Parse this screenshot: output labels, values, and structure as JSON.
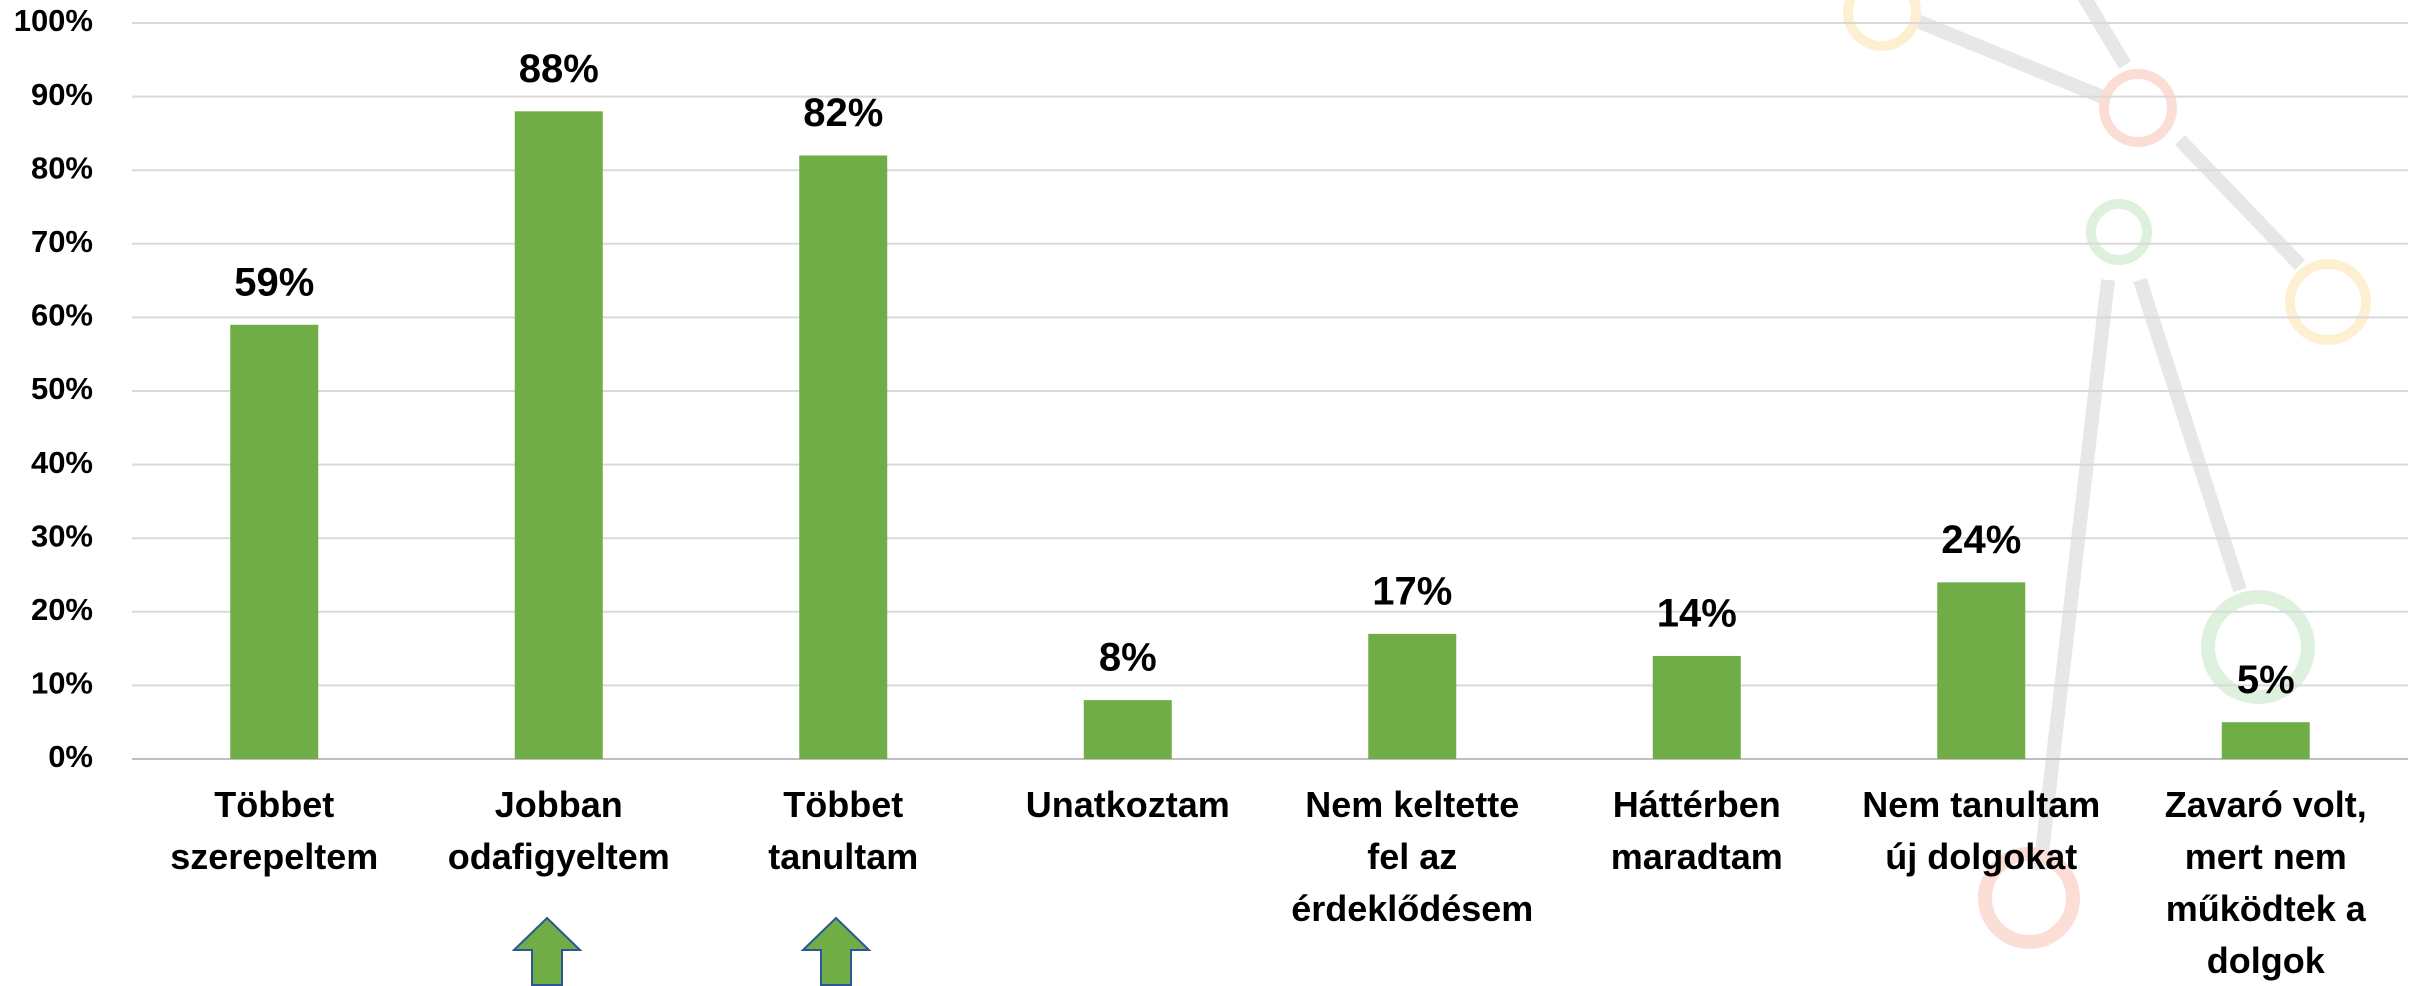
{
  "chart_data": {
    "type": "bar",
    "categories": [
      "Többet\nszerepeltem",
      "Jobban\nodafigyeltem",
      "Többet\ntanultam",
      "Unatkoztam",
      "Nem keltette\nfel az\nérdeklődésem",
      "Háttérben\nmaradtam",
      "Nem tanultam\núj dolgokat",
      "Zavaró volt,\nmert nem\nműködtek a\ndolgok"
    ],
    "values": [
      59,
      88,
      82,
      8,
      17,
      14,
      24,
      5
    ],
    "value_labels": [
      "59%",
      "88%",
      "82%",
      "8%",
      "17%",
      "14%",
      "24%",
      "5%"
    ],
    "color": "#70ad47",
    "ylim": [
      0,
      100
    ],
    "yticks": [
      {
        "value": 0,
        "label": "0%"
      },
      {
        "value": 10,
        "label": "10%"
      },
      {
        "value": 20,
        "label": "20%"
      },
      {
        "value": 30,
        "label": "30%"
      },
      {
        "value": 40,
        "label": "40%"
      },
      {
        "value": 50,
        "label": "50%"
      },
      {
        "value": 60,
        "label": "60%"
      },
      {
        "value": 70,
        "label": "70%"
      },
      {
        "value": 80,
        "label": "80%"
      },
      {
        "value": 90,
        "label": "90%"
      },
      {
        "value": 100,
        "label": "100%"
      }
    ],
    "grid": true
  }
}
